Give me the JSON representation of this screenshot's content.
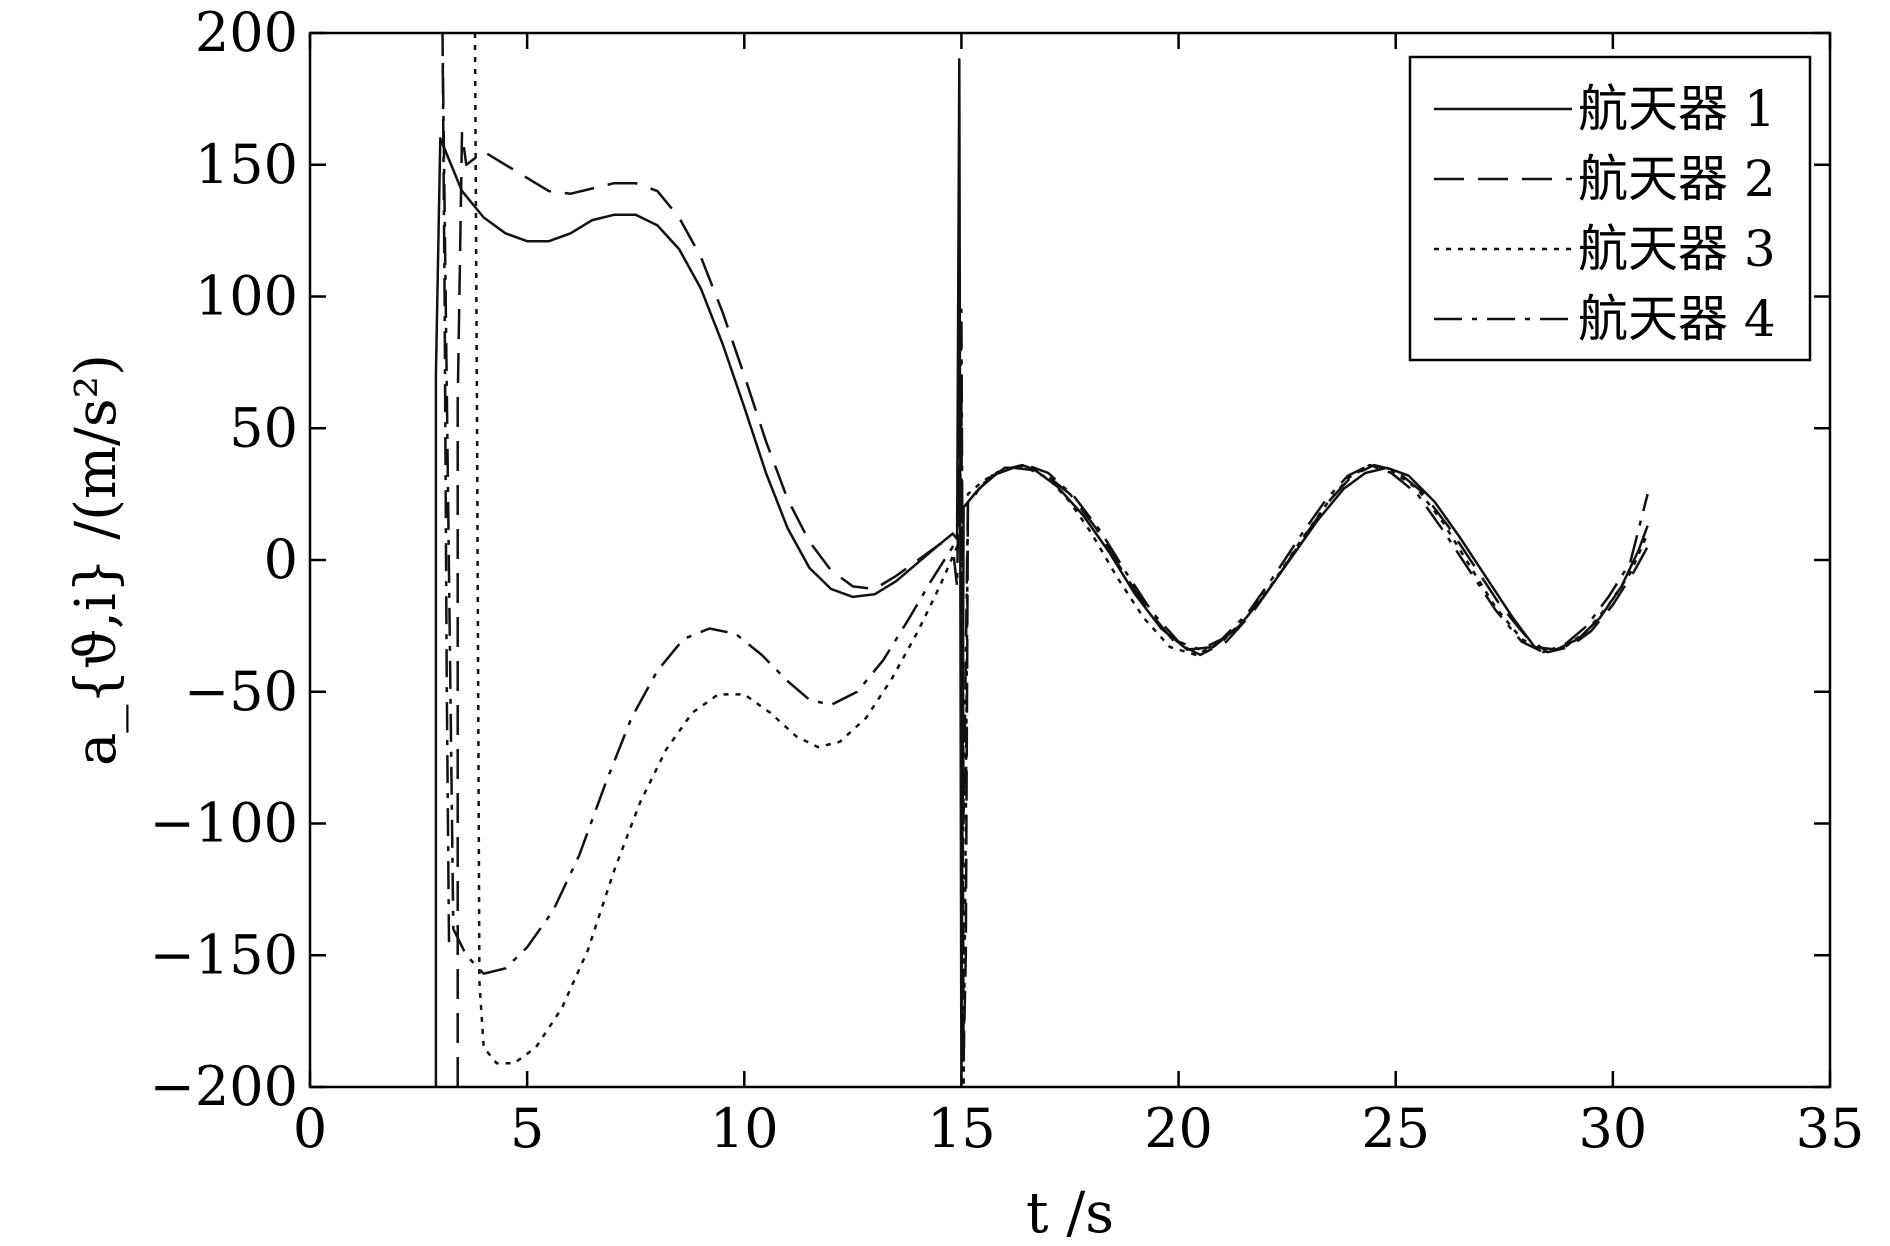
{
  "chart_data": {
    "type": "line",
    "xlabel": "t /s",
    "ylabel": "a_{ϑ,i} /(m/s²)",
    "xlim": [
      0,
      35
    ],
    "ylim": [
      -200,
      200
    ],
    "xticks": [
      "0",
      "5",
      "10",
      "15",
      "20",
      "25",
      "30",
      "35"
    ],
    "yticks": [
      "200",
      "150",
      "100",
      "50",
      "0",
      "−50",
      "−100",
      "−150",
      "−200"
    ],
    "grid": false,
    "legend_position": "top-right",
    "series": [
      {
        "name": "航天器 1",
        "style": "solid",
        "points": [
          [
            2.9,
            -200
          ],
          [
            2.9,
            70
          ],
          [
            3.0,
            160
          ],
          [
            3.5,
            140
          ],
          [
            4.0,
            130
          ],
          [
            4.5,
            124
          ],
          [
            5.0,
            121
          ],
          [
            5.5,
            121
          ],
          [
            6.0,
            124
          ],
          [
            6.5,
            129
          ],
          [
            7.0,
            131
          ],
          [
            7.5,
            131
          ],
          [
            8.0,
            127
          ],
          [
            8.5,
            118
          ],
          [
            9.0,
            103
          ],
          [
            9.5,
            82
          ],
          [
            10.0,
            58
          ],
          [
            10.5,
            33
          ],
          [
            11.0,
            12
          ],
          [
            11.5,
            -3
          ],
          [
            12.0,
            -11
          ],
          [
            12.5,
            -14
          ],
          [
            13.0,
            -13
          ],
          [
            13.5,
            -8
          ],
          [
            14.0,
            -1
          ],
          [
            14.5,
            6
          ],
          [
            14.8,
            10
          ],
          [
            14.9,
            8
          ],
          [
            14.95,
            190
          ],
          [
            15.0,
            -200
          ],
          [
            15.05,
            20
          ],
          [
            15.3,
            25
          ],
          [
            15.7,
            32
          ],
          [
            16.2,
            35
          ],
          [
            16.7,
            34
          ],
          [
            17.2,
            28
          ],
          [
            17.8,
            17
          ],
          [
            18.4,
            3
          ],
          [
            19.0,
            -13
          ],
          [
            19.6,
            -26
          ],
          [
            20.2,
            -34
          ],
          [
            20.8,
            -33
          ],
          [
            21.4,
            -25
          ],
          [
            22.0,
            -13
          ],
          [
            22.6,
            1
          ],
          [
            23.2,
            15
          ],
          [
            23.8,
            27
          ],
          [
            24.3,
            33
          ],
          [
            24.8,
            35
          ],
          [
            25.3,
            32
          ],
          [
            25.9,
            22
          ],
          [
            26.5,
            8
          ],
          [
            27.1,
            -7
          ],
          [
            27.7,
            -22
          ],
          [
            28.2,
            -33
          ],
          [
            28.7,
            -34
          ],
          [
            29.2,
            -30
          ],
          [
            29.7,
            -22
          ],
          [
            30.2,
            -10
          ],
          [
            30.6,
            4
          ],
          [
            30.8,
            13
          ]
        ]
      },
      {
        "name": "航天器 2",
        "style": "dashed",
        "points": [
          [
            3.4,
            -200
          ],
          [
            3.4,
            60
          ],
          [
            3.5,
            162
          ],
          [
            3.6,
            150
          ],
          [
            4.0,
            155
          ],
          [
            4.5,
            150
          ],
          [
            5.0,
            145
          ],
          [
            5.5,
            140
          ],
          [
            6.0,
            139
          ],
          [
            6.5,
            141
          ],
          [
            7.0,
            143
          ],
          [
            7.5,
            143
          ],
          [
            8.0,
            140
          ],
          [
            8.5,
            130
          ],
          [
            9.0,
            115
          ],
          [
            9.5,
            94
          ],
          [
            10.0,
            70
          ],
          [
            10.5,
            45
          ],
          [
            11.0,
            23
          ],
          [
            11.5,
            7
          ],
          [
            12.0,
            -4
          ],
          [
            12.5,
            -10
          ],
          [
            13.0,
            -11
          ],
          [
            13.5,
            -6
          ],
          [
            14.0,
            0
          ],
          [
            14.5,
            6
          ],
          [
            14.9,
            9
          ],
          [
            15.0,
            60
          ],
          [
            15.05,
            -190
          ],
          [
            15.1,
            -150
          ],
          [
            15.15,
            20
          ],
          [
            15.4,
            27
          ],
          [
            15.9,
            34
          ],
          [
            16.4,
            36
          ],
          [
            16.9,
            33
          ],
          [
            17.5,
            25
          ],
          [
            18.1,
            12
          ],
          [
            18.7,
            -4
          ],
          [
            19.3,
            -19
          ],
          [
            19.9,
            -31
          ],
          [
            20.5,
            -36
          ],
          [
            21.1,
            -31
          ],
          [
            21.7,
            -20
          ],
          [
            22.3,
            -6
          ],
          [
            22.9,
            9
          ],
          [
            23.5,
            23
          ],
          [
            24.0,
            32
          ],
          [
            24.5,
            36
          ],
          [
            25.0,
            34
          ],
          [
            25.6,
            26
          ],
          [
            26.2,
            13
          ],
          [
            26.8,
            -2
          ],
          [
            27.4,
            -17
          ],
          [
            28.0,
            -29
          ],
          [
            28.5,
            -35
          ],
          [
            29.0,
            -33
          ],
          [
            29.5,
            -27
          ],
          [
            30.0,
            -17
          ],
          [
            30.5,
            -4
          ],
          [
            30.8,
            5
          ]
        ]
      },
      {
        "name": "航天器 3",
        "style": "dotted",
        "points": [
          [
            3.8,
            200
          ],
          [
            3.85,
            40
          ],
          [
            3.9,
            -160
          ],
          [
            4.0,
            -185
          ],
          [
            4.3,
            -191
          ],
          [
            4.7,
            -191
          ],
          [
            5.2,
            -185
          ],
          [
            5.8,
            -170
          ],
          [
            6.4,
            -148
          ],
          [
            7.0,
            -118
          ],
          [
            7.6,
            -92
          ],
          [
            8.2,
            -72
          ],
          [
            8.8,
            -58
          ],
          [
            9.4,
            -51
          ],
          [
            10.0,
            -51
          ],
          [
            10.6,
            -58
          ],
          [
            11.2,
            -67
          ],
          [
            11.7,
            -71
          ],
          [
            12.2,
            -69
          ],
          [
            12.8,
            -60
          ],
          [
            13.4,
            -45
          ],
          [
            14.0,
            -27
          ],
          [
            14.5,
            -10
          ],
          [
            14.9,
            5
          ],
          [
            15.0,
            40
          ],
          [
            15.05,
            -200
          ],
          [
            15.1,
            -100
          ],
          [
            15.15,
            25
          ],
          [
            15.5,
            30
          ],
          [
            16.0,
            35
          ],
          [
            16.5,
            35
          ],
          [
            17.0,
            31
          ],
          [
            17.5,
            22
          ],
          [
            18.0,
            10
          ],
          [
            18.6,
            -7
          ],
          [
            19.2,
            -22
          ],
          [
            19.8,
            -33
          ],
          [
            20.4,
            -36
          ],
          [
            21.0,
            -31
          ],
          [
            21.6,
            -21
          ],
          [
            22.2,
            -8
          ],
          [
            22.8,
            7
          ],
          [
            23.4,
            21
          ],
          [
            23.9,
            31
          ],
          [
            24.4,
            36
          ],
          [
            24.9,
            34
          ],
          [
            25.5,
            27
          ],
          [
            26.1,
            14
          ],
          [
            26.7,
            -2
          ],
          [
            27.3,
            -18
          ],
          [
            27.9,
            -30
          ],
          [
            28.4,
            -35
          ],
          [
            28.9,
            -33
          ],
          [
            29.4,
            -27
          ],
          [
            29.9,
            -17
          ],
          [
            30.4,
            -5
          ],
          [
            30.8,
            10
          ]
        ]
      },
      {
        "name": "航天器 4",
        "style": "dashdot",
        "points": [
          [
            3.2,
            -145
          ],
          [
            3.15,
            -50
          ],
          [
            3.1,
            100
          ],
          [
            3.05,
            200
          ],
          [
            3.3,
            -140
          ],
          [
            3.6,
            -150
          ],
          [
            4.0,
            -157
          ],
          [
            4.5,
            -155
          ],
          [
            5.0,
            -147
          ],
          [
            5.6,
            -133
          ],
          [
            6.2,
            -112
          ],
          [
            6.8,
            -85
          ],
          [
            7.4,
            -60
          ],
          [
            8.0,
            -42
          ],
          [
            8.6,
            -30
          ],
          [
            9.2,
            -26
          ],
          [
            9.8,
            -28
          ],
          [
            10.4,
            -36
          ],
          [
            11.0,
            -46
          ],
          [
            11.5,
            -53
          ],
          [
            12.0,
            -55
          ],
          [
            12.6,
            -50
          ],
          [
            13.2,
            -38
          ],
          [
            13.8,
            -22
          ],
          [
            14.3,
            -8
          ],
          [
            14.8,
            5
          ],
          [
            14.9,
            -10
          ],
          [
            15.0,
            95
          ],
          [
            15.05,
            -100
          ],
          [
            15.15,
            22
          ],
          [
            15.5,
            29
          ],
          [
            16.0,
            35
          ],
          [
            16.5,
            36
          ],
          [
            17.0,
            33
          ],
          [
            17.6,
            24
          ],
          [
            18.2,
            11
          ],
          [
            18.8,
            -5
          ],
          [
            19.4,
            -20
          ],
          [
            20.0,
            -31
          ],
          [
            20.5,
            -34
          ],
          [
            21.0,
            -30
          ],
          [
            21.6,
            -20
          ],
          [
            22.2,
            -6
          ],
          [
            22.8,
            9
          ],
          [
            23.4,
            23
          ],
          [
            23.9,
            32
          ],
          [
            24.4,
            36
          ],
          [
            24.9,
            33
          ],
          [
            25.5,
            25
          ],
          [
            26.1,
            11
          ],
          [
            26.7,
            -4
          ],
          [
            27.3,
            -19
          ],
          [
            27.9,
            -31
          ],
          [
            28.4,
            -35
          ],
          [
            28.9,
            -32
          ],
          [
            29.4,
            -25
          ],
          [
            29.9,
            -14
          ],
          [
            30.4,
            -1
          ],
          [
            30.8,
            25
          ]
        ]
      }
    ]
  }
}
